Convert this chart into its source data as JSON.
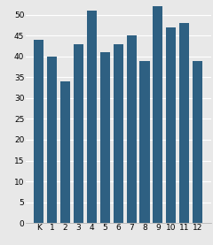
{
  "categories": [
    "K",
    "1",
    "2",
    "3",
    "4",
    "5",
    "6",
    "7",
    "8",
    "9",
    "10",
    "11",
    "12"
  ],
  "values": [
    44,
    40,
    34,
    43,
    51,
    41,
    43,
    45,
    39,
    52,
    47,
    48,
    39
  ],
  "bar_color": "#2e6082",
  "ylim": [
    0,
    53
  ],
  "yticks": [
    0,
    5,
    10,
    15,
    20,
    25,
    30,
    35,
    40,
    45,
    50
  ],
  "background_color": "#e8e8e8",
  "grid_color": "#ffffff",
  "tick_fontsize": 6.5
}
